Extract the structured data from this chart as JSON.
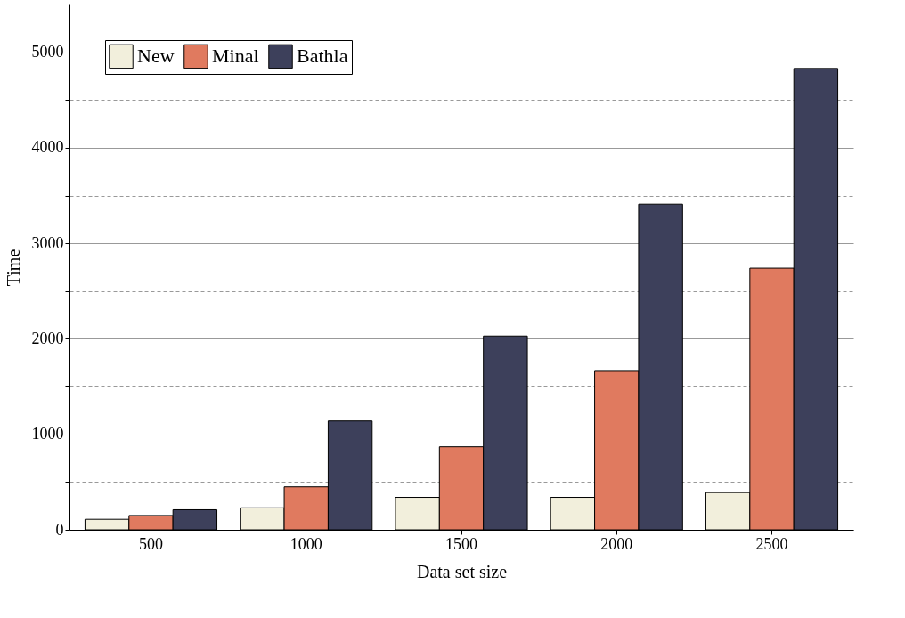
{
  "chart_data": {
    "type": "bar",
    "xlabel": "Data set size",
    "ylabel": "Time",
    "categories": [
      "500",
      "1000",
      "1500",
      "2000",
      "2500"
    ],
    "series": [
      {
        "name": "New",
        "color": "#f2efdc",
        "values": [
          110,
          230,
          340,
          340,
          390
        ]
      },
      {
        "name": "Minal",
        "color": "#e07a5f",
        "values": [
          150,
          450,
          870,
          1660,
          2740
        ]
      },
      {
        "name": "Bathla",
        "color": "#3d405b",
        "values": [
          210,
          1140,
          2030,
          3410,
          4830
        ]
      }
    ],
    "ylim": [
      0,
      5500
    ],
    "yticks": [
      0,
      {
        "value": 500,
        "label": null
      },
      1000,
      {
        "value": 1500,
        "label": null
      },
      2000,
      {
        "value": 2500,
        "label": null
      },
      3000,
      {
        "value": 3500,
        "label": null
      },
      4000,
      {
        "value": 4500,
        "label": null
      },
      5000
    ],
    "grid": "y",
    "legend": "top left"
  }
}
